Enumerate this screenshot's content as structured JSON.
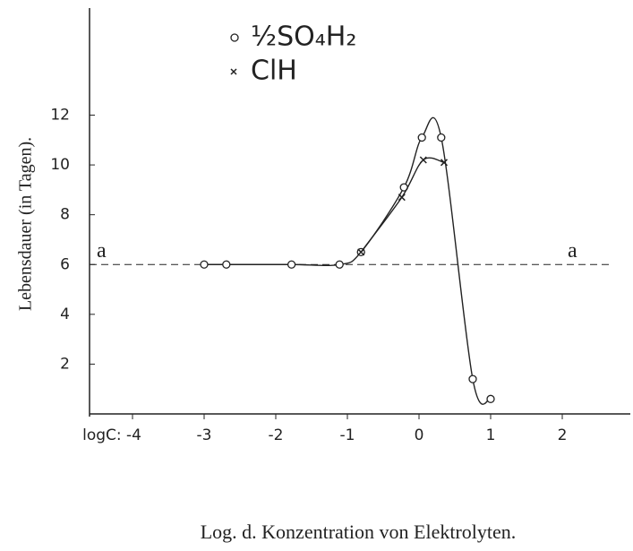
{
  "chart_data": {
    "type": "line",
    "x_label": "Log. d. Konzentration von Elektrolyten.",
    "y_label": "Lebensdauer (in Tagen).",
    "xlim": [
      -4.6,
      2.95
    ],
    "ylim": [
      0,
      16.3
    ],
    "xticks": [
      {
        "value": -4,
        "label": "logC: -4"
      },
      -3,
      -2,
      -1,
      0,
      1,
      2
    ],
    "yticks": [
      2,
      4,
      6,
      8,
      10,
      12
    ],
    "reference_line": {
      "value": 6,
      "label": "a"
    },
    "series": [
      {
        "name": "½SO₄H₂",
        "marker": "circle",
        "color": "#222",
        "x": [
          -3,
          -2.69,
          -1.78,
          -1.11,
          -0.81,
          -0.21,
          0.04,
          0.31,
          0.75,
          1
        ],
        "values": [
          6,
          6,
          6,
          6,
          6.5,
          9.1,
          11.1,
          11.1,
          1.4,
          0.6
        ]
      },
      {
        "name": "ClH",
        "marker": "x",
        "color": "#222",
        "x": [
          -0.81,
          -0.24,
          0.06,
          0.35
        ],
        "values": [
          6.5,
          8.7,
          10.2,
          10.1
        ]
      }
    ]
  }
}
